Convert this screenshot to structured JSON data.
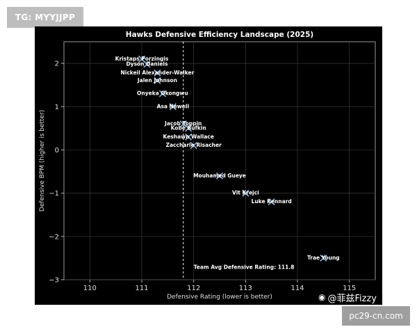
{
  "watermarks": {
    "top_tag": "TG: MYYJJPP",
    "weibo_icon": "weibo-icon",
    "weibo_handle": "@菲兹Fizzy",
    "site": "pc29-cn.com"
  },
  "chart_data": {
    "type": "scatter",
    "title": "Hawks Defensive Efficiency Landscape (2025)",
    "xlabel": "Defensive Rating (lower is better)",
    "ylabel": "Defensive BPM (higher is better)",
    "xlim": [
      109.5,
      115.5
    ],
    "ylim": [
      -3,
      2.5
    ],
    "xticks": [
      110,
      111,
      112,
      113,
      114,
      115
    ],
    "yticks": [
      -3,
      -2,
      -1,
      0,
      1,
      2
    ],
    "grid": true,
    "reference_line": {
      "axis": "x",
      "value": 111.8,
      "label": "Team Avg Defensive Rating: 111.8"
    },
    "points": [
      {
        "name": "Kristaps Porzingis",
        "x": 111.0,
        "y": 2.1
      },
      {
        "name": "Dyson Daniels",
        "x": 111.1,
        "y": 1.98
      },
      {
        "name": "Nickeil Alexander-Walker",
        "x": 111.3,
        "y": 1.78
      },
      {
        "name": "Jalen Johnson",
        "x": 111.3,
        "y": 1.6
      },
      {
        "name": "Onyeka Okongwu",
        "x": 111.4,
        "y": 1.3
      },
      {
        "name": "Asa Newell",
        "x": 111.6,
        "y": 1.0
      },
      {
        "name": "Jacob Toppin",
        "x": 111.8,
        "y": 0.6
      },
      {
        "name": "Kobe Bufkin",
        "x": 111.9,
        "y": 0.5
      },
      {
        "name": "Keshawn Wallace",
        "x": 111.9,
        "y": 0.3
      },
      {
        "name": "Zaccharie Risacher",
        "x": 112.0,
        "y": 0.1
      },
      {
        "name": "Mouhamed Gueye",
        "x": 112.5,
        "y": -0.6
      },
      {
        "name": "Vit Krejci",
        "x": 113.0,
        "y": -1.0
      },
      {
        "name": "Luke Kennard",
        "x": 113.5,
        "y": -1.2
      },
      {
        "name": "Trae Young",
        "x": 114.5,
        "y": -2.5
      }
    ]
  }
}
